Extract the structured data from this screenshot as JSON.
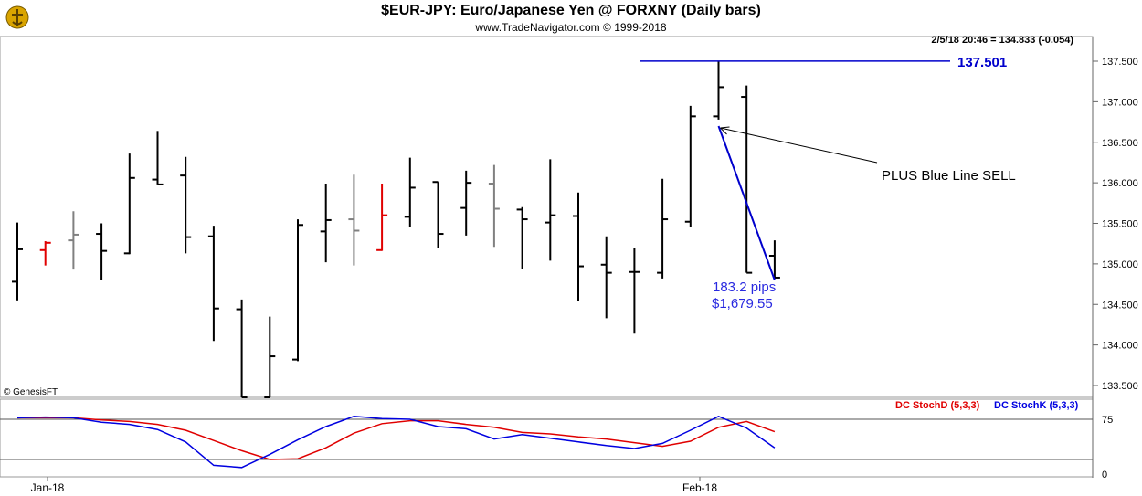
{
  "header": {
    "title": "$EUR-JPY:  Euro/Japanese Yen @ FORXNY  (Daily bars)",
    "subtitle": "www.TradeNavigator.com © 1999-2018",
    "quote": "2/5/18 20:46 = 134.833 (-0.054)",
    "copyright": "© GenesisFT"
  },
  "chart_data": [
    {
      "type": "ohlc",
      "ylim": [
        133.3,
        137.65
      ],
      "y_ticks": [
        "137.500",
        "137.000",
        "136.500",
        "136.000",
        "135.500",
        "135.000",
        "134.500",
        "134.000",
        "133.500"
      ],
      "x_ticks": [
        "Jan-18",
        "Feb-18"
      ],
      "bar_colors": {
        "up_down": "#000000",
        "red": "#e00000",
        "gray": "#808080"
      },
      "bars": [
        {
          "h": 135.51,
          "l": 134.55,
          "o": 134.78,
          "c": 135.18,
          "color": "black"
        },
        {
          "h": 135.28,
          "l": 134.98,
          "o": 135.17,
          "c": 135.26,
          "color": "red"
        },
        {
          "h": 135.65,
          "l": 134.93,
          "o": 135.29,
          "c": 135.36,
          "color": "gray"
        },
        {
          "h": 135.5,
          "l": 134.8,
          "o": 135.37,
          "c": 135.16,
          "color": "black"
        },
        {
          "h": 136.36,
          "l": 135.12,
          "o": 135.13,
          "c": 136.06,
          "color": "black"
        },
        {
          "h": 136.64,
          "l": 135.98,
          "o": 136.04,
          "c": 135.98,
          "color": "black"
        },
        {
          "h": 136.32,
          "l": 135.13,
          "o": 136.09,
          "c": 135.33,
          "color": "black"
        },
        {
          "h": 135.47,
          "l": 134.05,
          "o": 135.34,
          "c": 134.45,
          "color": "black"
        },
        {
          "h": 134.56,
          "l": 133.3,
          "o": 134.44,
          "c": 133.3,
          "color": "black"
        },
        {
          "h": 134.35,
          "l": 133.3,
          "o": 133.3,
          "c": 133.86,
          "color": "black"
        },
        {
          "h": 135.55,
          "l": 133.8,
          "o": 133.82,
          "c": 135.48,
          "color": "black"
        },
        {
          "h": 135.99,
          "l": 135.02,
          "o": 135.4,
          "c": 135.54,
          "color": "black"
        },
        {
          "h": 136.1,
          "l": 134.98,
          "o": 135.55,
          "c": 135.41,
          "color": "gray"
        },
        {
          "h": 135.99,
          "l": 135.16,
          "o": 135.17,
          "c": 135.6,
          "color": "red"
        },
        {
          "h": 136.31,
          "l": 135.46,
          "o": 135.58,
          "c": 135.94,
          "color": "black"
        },
        {
          "h": 136.01,
          "l": 135.19,
          "o": 136.01,
          "c": 135.37,
          "color": "black"
        },
        {
          "h": 136.15,
          "l": 135.35,
          "o": 135.69,
          "c": 136.0,
          "color": "black"
        },
        {
          "h": 136.22,
          "l": 135.21,
          "o": 135.99,
          "c": 135.68,
          "color": "gray"
        },
        {
          "h": 135.7,
          "l": 134.94,
          "o": 135.67,
          "c": 135.55,
          "color": "black"
        },
        {
          "h": 136.29,
          "l": 135.04,
          "o": 135.51,
          "c": 135.6,
          "color": "black"
        },
        {
          "h": 135.88,
          "l": 134.54,
          "o": 135.59,
          "c": 134.97,
          "color": "black"
        },
        {
          "h": 135.34,
          "l": 134.33,
          "o": 134.99,
          "c": 134.89,
          "color": "black"
        },
        {
          "h": 135.19,
          "l": 134.14,
          "o": 134.9,
          "c": 134.9,
          "color": "black"
        },
        {
          "h": 136.05,
          "l": 134.82,
          "o": 134.89,
          "c": 135.55,
          "color": "black"
        },
        {
          "h": 136.95,
          "l": 135.45,
          "o": 135.52,
          "c": 136.82,
          "color": "black"
        },
        {
          "h": 137.5,
          "l": 136.78,
          "o": 136.82,
          "c": 137.18,
          "color": "black"
        },
        {
          "h": 137.2,
          "l": 134.89,
          "o": 137.06,
          "c": 134.89,
          "color": "black"
        },
        {
          "h": 135.29,
          "l": 134.82,
          "o": 135.1,
          "c": 134.83,
          "color": "black"
        }
      ],
      "annotations": {
        "high_line_label": "137.501",
        "high_value": 137.501,
        "arrow_text": "PLUS Blue Line SELL",
        "pips_text": "183.2 pips",
        "dollar_text": "$1,679.55",
        "blue_line_from": {
          "bar": 25,
          "value": 136.7
        },
        "blue_line_to": {
          "bar": 27,
          "value": 134.8
        }
      }
    },
    {
      "type": "line",
      "ylim": [
        0,
        100
      ],
      "y_ticks": [
        "75",
        "0"
      ],
      "reference_lines": [
        75,
        20
      ],
      "series": [
        {
          "name": "DC StochD (5,3,3)",
          "color": "#e00000",
          "values": [
            77,
            77,
            77,
            74,
            72,
            68,
            60,
            46,
            32,
            20,
            21,
            36,
            56,
            69,
            73,
            73,
            68,
            64,
            57,
            55,
            51,
            48,
            43,
            38,
            45,
            64,
            72,
            58
          ]
        },
        {
          "name": "DC StochK (5,3,3)",
          "color": "#0000e0",
          "values": [
            77,
            78,
            77,
            71,
            68,
            61,
            44,
            12,
            9,
            27,
            47,
            65,
            79,
            76,
            75,
            65,
            62,
            48,
            54,
            49,
            44,
            39,
            35,
            42,
            60,
            79,
            63,
            36
          ]
        }
      ]
    }
  ]
}
